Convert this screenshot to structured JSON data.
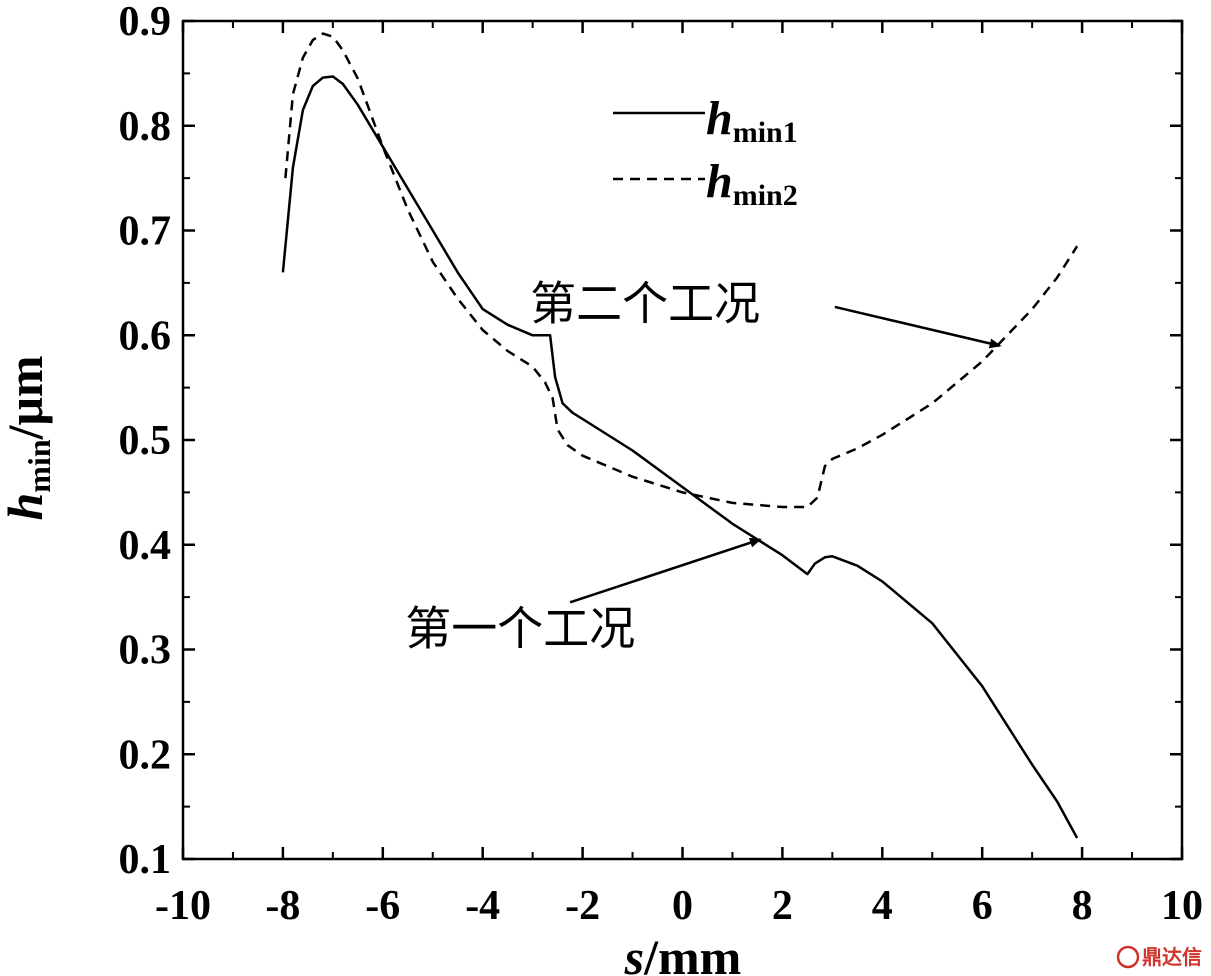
{
  "chart_data": {
    "type": "line",
    "title": "",
    "xlabel": {
      "italic": "s",
      "rest": "/mm"
    },
    "ylabel": {
      "italic": "h",
      "sub": "min",
      "rest": "/μm"
    },
    "xlim": [
      -10,
      10
    ],
    "ylim": [
      0.1,
      0.9
    ],
    "xticks": [
      -10,
      -8,
      -6,
      -4,
      -2,
      0,
      2,
      4,
      6,
      8,
      10
    ],
    "yticks": [
      0.1,
      0.2,
      0.3,
      0.4,
      0.5,
      0.6,
      0.7,
      0.8,
      0.9
    ],
    "xtick_labels": [
      "-10",
      "-8",
      "-6",
      "-4",
      "-2",
      "0",
      "2",
      "4",
      "6",
      "8",
      "10"
    ],
    "ytick_labels": [
      "0.1",
      "0.2",
      "0.3",
      "0.4",
      "0.5",
      "0.6",
      "0.7",
      "0.8",
      "0.9"
    ],
    "grid": false,
    "legend_position": "top-center",
    "series": [
      {
        "name": "h_min1",
        "legend": {
          "italic": "h",
          "sub": "min1"
        },
        "style": "solid",
        "color": "#000000",
        "points": [
          [
            -8.0,
            0.66
          ],
          [
            -7.8,
            0.76
          ],
          [
            -7.6,
            0.815
          ],
          [
            -7.4,
            0.838
          ],
          [
            -7.2,
            0.846
          ],
          [
            -7.0,
            0.847
          ],
          [
            -6.8,
            0.84
          ],
          [
            -6.5,
            0.82
          ],
          [
            -6.0,
            0.78
          ],
          [
            -5.5,
            0.74
          ],
          [
            -5.0,
            0.7
          ],
          [
            -4.5,
            0.66
          ],
          [
            -4.0,
            0.625
          ],
          [
            -3.5,
            0.61
          ],
          [
            -3.0,
            0.6
          ],
          [
            -2.65,
            0.6
          ],
          [
            -2.55,
            0.56
          ],
          [
            -2.4,
            0.535
          ],
          [
            -2.2,
            0.526
          ],
          [
            -2.0,
            0.52
          ],
          [
            -1.0,
            0.49
          ],
          [
            0.0,
            0.455
          ],
          [
            1.0,
            0.42
          ],
          [
            2.0,
            0.39
          ],
          [
            2.5,
            0.372
          ],
          [
            2.65,
            0.382
          ],
          [
            2.85,
            0.388
          ],
          [
            3.0,
            0.389
          ],
          [
            3.5,
            0.38
          ],
          [
            4.0,
            0.365
          ],
          [
            5.0,
            0.325
          ],
          [
            6.0,
            0.265
          ],
          [
            7.0,
            0.19
          ],
          [
            7.5,
            0.155
          ],
          [
            7.9,
            0.12
          ]
        ]
      },
      {
        "name": "h_min2",
        "legend": {
          "italic": "h",
          "sub": "min2"
        },
        "style": "dashed",
        "color": "#000000",
        "points": [
          [
            -7.95,
            0.75
          ],
          [
            -7.8,
            0.83
          ],
          [
            -7.6,
            0.865
          ],
          [
            -7.4,
            0.882
          ],
          [
            -7.2,
            0.888
          ],
          [
            -7.0,
            0.885
          ],
          [
            -6.8,
            0.872
          ],
          [
            -6.5,
            0.845
          ],
          [
            -6.0,
            0.78
          ],
          [
            -5.5,
            0.72
          ],
          [
            -5.0,
            0.67
          ],
          [
            -4.5,
            0.635
          ],
          [
            -4.0,
            0.605
          ],
          [
            -3.5,
            0.585
          ],
          [
            -3.0,
            0.57
          ],
          [
            -2.75,
            0.555
          ],
          [
            -2.6,
            0.54
          ],
          [
            -2.5,
            0.51
          ],
          [
            -2.3,
            0.495
          ],
          [
            -2.0,
            0.485
          ],
          [
            -1.0,
            0.465
          ],
          [
            0.0,
            0.45
          ],
          [
            1.0,
            0.44
          ],
          [
            2.0,
            0.436
          ],
          [
            2.5,
            0.436
          ],
          [
            2.7,
            0.445
          ],
          [
            2.85,
            0.475
          ],
          [
            3.0,
            0.482
          ],
          [
            3.5,
            0.492
          ],
          [
            4.0,
            0.505
          ],
          [
            5.0,
            0.535
          ],
          [
            6.0,
            0.575
          ],
          [
            7.0,
            0.625
          ],
          [
            7.5,
            0.655
          ],
          [
            7.9,
            0.685
          ]
        ]
      }
    ],
    "annotations": [
      {
        "text": "第二个工况",
        "x": -3.05,
        "y": 0.615,
        "arrow_from": [
          3.05,
          0.627
        ],
        "arrow_to": [
          6.35,
          0.59
        ]
      },
      {
        "text": "第一个工况",
        "x": -5.55,
        "y": 0.305,
        "arrow_from": [
          -2.25,
          0.345
        ],
        "arrow_to": [
          1.55,
          0.405
        ]
      }
    ]
  },
  "watermark": "鼎达信"
}
